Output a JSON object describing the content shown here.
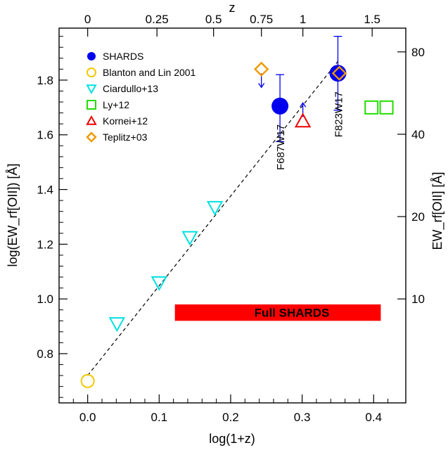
{
  "chart_data": {
    "type": "scatter",
    "xlabel": "log(1+z)",
    "ylabel": "log(EW_rf[OII]) [Å]",
    "top_axis_label": "z",
    "right_axis_label": "EW_rf[OII] [Å]",
    "xlim": [
      -0.04,
      0.445
    ],
    "ylim": [
      0.62,
      1.99
    ],
    "x_ticks": [
      "0.0",
      "0.1",
      "0.2",
      "0.3",
      "0.4"
    ],
    "y_ticks": [
      "0.8",
      "1.0",
      "1.2",
      "1.4",
      "1.6",
      "1.8"
    ],
    "top_ticks": [
      {
        "z": 0,
        "label": "0"
      },
      {
        "z": 0.25,
        "label": "0.25"
      },
      {
        "z": 0.5,
        "label": "0.5"
      },
      {
        "z": 0.75,
        "label": "0.75"
      },
      {
        "z": 1,
        "label": "1"
      },
      {
        "z": 1.5,
        "label": "1.5"
      }
    ],
    "right_ticks": [
      {
        "ew": 10,
        "label": "10"
      },
      {
        "ew": 20,
        "label": "20"
      },
      {
        "ew": 40,
        "label": "40"
      },
      {
        "ew": 80,
        "label": "80"
      }
    ],
    "grid": false,
    "legend_position": "top-left",
    "series": [
      {
        "name": "SHARDS",
        "marker": "filled-circle",
        "color": "#0000ee",
        "points": [
          {
            "x": 0.269,
            "y": 1.705,
            "err_low": 1.575,
            "err_high": 1.82,
            "label": "F687W17"
          },
          {
            "x": 0.35,
            "y": 1.825,
            "err_low": 1.69,
            "err_high": 1.96,
            "label": "F823W17"
          }
        ]
      },
      {
        "name": "Blanton and Lin 2001",
        "marker": "open-circle",
        "color": "#f2c800",
        "points": [
          {
            "x": 0.0,
            "y": 0.7
          }
        ]
      },
      {
        "name": "Ciardullo+13",
        "marker": "open-triangle-down",
        "color": "#00e0e0",
        "points": [
          {
            "x": 0.041,
            "y": 0.91
          },
          {
            "x": 0.1,
            "y": 1.06
          },
          {
            "x": 0.143,
            "y": 1.225
          },
          {
            "x": 0.178,
            "y": 1.335
          }
        ]
      },
      {
        "name": "Ly+12",
        "marker": "open-square",
        "color": "#22dd00",
        "points": [
          {
            "x": 0.397,
            "y": 1.7
          },
          {
            "x": 0.418,
            "y": 1.7
          }
        ]
      },
      {
        "name": "Kornei+12",
        "marker": "open-triangle-up",
        "color": "#ee0000",
        "points": [
          {
            "x": 0.301,
            "y": 1.65,
            "arrow": "up"
          }
        ]
      },
      {
        "name": "Teplitz+03",
        "marker": "open-diamond",
        "color": "#ee9900",
        "points": [
          {
            "x": 0.243,
            "y": 1.84,
            "arrow": "down"
          },
          {
            "x": 0.352,
            "y": 1.825
          }
        ]
      }
    ],
    "fit_line": {
      "x": [
        0.0,
        0.352
      ],
      "y": [
        0.72,
        1.875
      ],
      "style": "dashed"
    },
    "bar": {
      "label": "Full SHARDS",
      "x": [
        0.122,
        0.41
      ],
      "y": [
        0.92,
        0.98
      ],
      "color": "#ff0000"
    }
  }
}
